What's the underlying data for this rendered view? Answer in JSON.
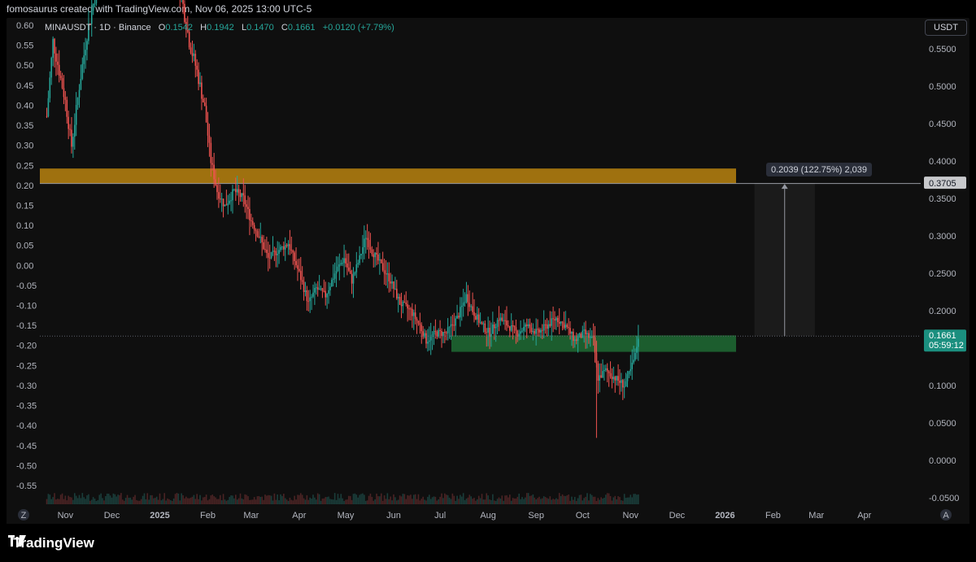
{
  "header": {
    "caption": "fomosaurus created with TradingView.com, Nov 06, 2025 13:00 UTC-5"
  },
  "legend": {
    "symbol": "MINAUSDT · 1D · Binance",
    "o_label": "O",
    "o_value": "0.1542",
    "h_label": "H",
    "h_value": "0.1942",
    "l_label": "L",
    "l_value": "0.1470",
    "c_label": "C",
    "c_value": "0.1661",
    "change": "+0.0120 (+7.79%)"
  },
  "currency_button": "USDT",
  "brand": {
    "name": "TradingView"
  },
  "axis_buttons": {
    "left": "Z",
    "right": "A"
  },
  "colors": {
    "up": "#26a69a",
    "down": "#ef5350",
    "resistance_zone": "#b8820f",
    "support_zone": "#1f6b34",
    "measure": "#ffffff",
    "price_label_bg": "#1b8f7f"
  },
  "chart_data": {
    "type": "candlestick",
    "symbol": "MINAUSDT",
    "interval": "1D",
    "right_axis_ticks": [
      "0.5500",
      "0.5000",
      "0.4500",
      "0.4000",
      "0.3500",
      "0.3000",
      "0.2500",
      "0.2000",
      "0.1000",
      "0.0500",
      "0.0000",
      "-0.0500"
    ],
    "left_axis_ticks": [
      "0.60",
      "0.55",
      "0.50",
      "0.45",
      "0.40",
      "0.35",
      "0.30",
      "0.25",
      "0.20",
      "0.15",
      "0.10",
      "0.05",
      "0.00",
      "-0.05",
      "-0.10",
      "-0.15",
      "-0.20",
      "-0.25",
      "-0.30",
      "-0.35",
      "-0.40",
      "-0.45",
      "-0.50",
      "-0.55"
    ],
    "x_labels": [
      "Nov",
      "Dec",
      "2025",
      "Feb",
      "Mar",
      "Apr",
      "May",
      "Jun",
      "Jul",
      "Aug",
      "Sep",
      "Oct",
      "Nov",
      "Dec",
      "2026",
      "Feb",
      "Mar",
      "Apr"
    ],
    "current_price": "0.1661",
    "countdown": "05:59:12",
    "target_label": "0.3705",
    "measure_label": "0.2039 (122.75%) 2,039",
    "resistance_zone": [
      0.37,
      0.39
    ],
    "support_zone": [
      0.145,
      0.167
    ],
    "path": [
      [
        "2024-10-20",
        0.46
      ],
      [
        "2024-10-24",
        0.56
      ],
      [
        "2024-10-28",
        0.52
      ],
      [
        "2024-11-01",
        0.48
      ],
      [
        "2024-11-05",
        0.42
      ],
      [
        "2024-11-10",
        0.5
      ],
      [
        "2024-11-15",
        0.57
      ],
      [
        "2024-11-20",
        0.62
      ],
      [
        "2024-11-25",
        0.66
      ],
      [
        "2024-12-01",
        0.7
      ],
      [
        "2024-12-05",
        0.76
      ],
      [
        "2024-12-10",
        0.68
      ],
      [
        "2024-12-15",
        0.72
      ],
      [
        "2024-12-20",
        0.64
      ],
      [
        "2024-12-25",
        0.7
      ],
      [
        "2025-01-01",
        0.66
      ],
      [
        "2025-01-08",
        0.68
      ],
      [
        "2025-01-15",
        0.62
      ],
      [
        "2025-01-20",
        0.56
      ],
      [
        "2025-01-25",
        0.52
      ],
      [
        "2025-01-30",
        0.47
      ],
      [
        "2025-02-03",
        0.4
      ],
      [
        "2025-02-07",
        0.36
      ],
      [
        "2025-02-12",
        0.34
      ],
      [
        "2025-02-18",
        0.36
      ],
      [
        "2025-02-24",
        0.35
      ],
      [
        "2025-03-01",
        0.32
      ],
      [
        "2025-03-06",
        0.3
      ],
      [
        "2025-03-12",
        0.27
      ],
      [
        "2025-03-18",
        0.28
      ],
      [
        "2025-03-25",
        0.29
      ],
      [
        "2025-04-01",
        0.25
      ],
      [
        "2025-04-07",
        0.21
      ],
      [
        "2025-04-12",
        0.23
      ],
      [
        "2025-04-18",
        0.22
      ],
      [
        "2025-04-24",
        0.25
      ],
      [
        "2025-04-30",
        0.27
      ],
      [
        "2025-05-05",
        0.24
      ],
      [
        "2025-05-10",
        0.27
      ],
      [
        "2025-05-14",
        0.3
      ],
      [
        "2025-05-18",
        0.28
      ],
      [
        "2025-05-24",
        0.26
      ],
      [
        "2025-05-30",
        0.24
      ],
      [
        "2025-06-05",
        0.21
      ],
      [
        "2025-06-12",
        0.2
      ],
      [
        "2025-06-18",
        0.18
      ],
      [
        "2025-06-22",
        0.16
      ],
      [
        "2025-06-28",
        0.17
      ],
      [
        "2025-07-05",
        0.17
      ],
      [
        "2025-07-12",
        0.19
      ],
      [
        "2025-07-18",
        0.22
      ],
      [
        "2025-07-22",
        0.2
      ],
      [
        "2025-07-28",
        0.18
      ],
      [
        "2025-08-02",
        0.17
      ],
      [
        "2025-08-08",
        0.19
      ],
      [
        "2025-08-14",
        0.18
      ],
      [
        "2025-08-20",
        0.17
      ],
      [
        "2025-08-26",
        0.18
      ],
      [
        "2025-09-02",
        0.17
      ],
      [
        "2025-09-08",
        0.18
      ],
      [
        "2025-09-14",
        0.19
      ],
      [
        "2025-09-20",
        0.18
      ],
      [
        "2025-09-26",
        0.16
      ],
      [
        "2025-10-02",
        0.17
      ],
      [
        "2025-10-08",
        0.16
      ],
      [
        "2025-10-11",
        0.11
      ],
      [
        "2025-10-16",
        0.12
      ],
      [
        "2025-10-22",
        0.11
      ],
      [
        "2025-10-28",
        0.1
      ],
      [
        "2025-11-01",
        0.12
      ],
      [
        "2025-11-04",
        0.14
      ],
      [
        "2025-11-06",
        0.1661
      ]
    ]
  }
}
